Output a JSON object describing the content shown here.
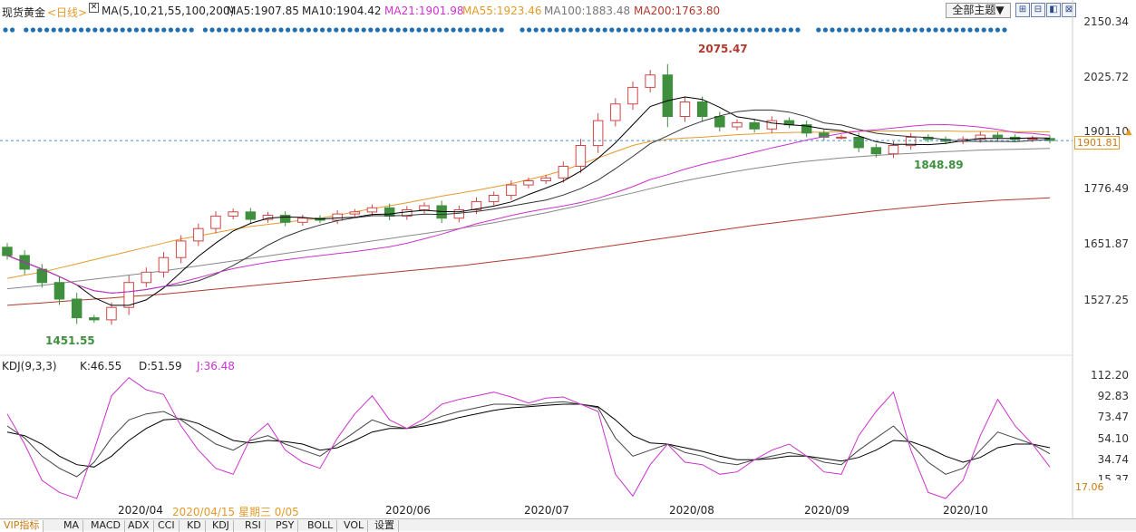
{
  "header": {
    "instrument": "现货黄金",
    "period": "<日线>",
    "ma_label": "MA(5,10,21,55,100,200)",
    "ma5": "MA5:1907.85",
    "ma10": "MA10:1904.42",
    "ma21": "MA21:1901.98",
    "ma55": "MA55:1923.46",
    "ma100": "MA100:1883.48",
    "ma200": "MA200:1763.80",
    "theme_button": "全部主题▼"
  },
  "window_buttons": [
    "⊞",
    "⊟",
    "◧",
    "⊠"
  ],
  "price_axis": [
    "2150.34",
    "2025.72",
    "1901.10",
    "1776.49",
    "1651.87",
    "1527.25"
  ],
  "price_tag": "1901.81",
  "annotations": {
    "high": "2075.47",
    "low": "1451.55",
    "local_low": "1848.89"
  },
  "kdj": {
    "label": "KDJ(9,3,3)",
    "k": "K:46.55",
    "d": "D:51.59",
    "j": "J:36.48",
    "axis": [
      "112.20",
      "92.83",
      "73.47",
      "54.10",
      "34.74",
      "15.37"
    ],
    "current_tag": "17.06"
  },
  "dates": {
    "m1": "2020/04",
    "cursor": "2020/04/15 星期三 0/05",
    "m2": "2020/06",
    "m3": "2020/07",
    "m4": "2020/08",
    "m5": "2020/09",
    "m6": "2020/10"
  },
  "tabs": [
    "VIP指标",
    "MA",
    "MACD",
    "ADX",
    "CCI",
    "KD",
    "KDJ",
    "RSI",
    "PSY",
    "BOLL",
    "VOL",
    "设置"
  ],
  "colors": {
    "ma5": "#000000",
    "ma10": "#333333",
    "ma21": "#cc33cc",
    "ma55": "#e39b2b",
    "ma100": "#888888",
    "ma200": "#b03a2e",
    "up": "#d04545",
    "down": "#3f8f3f",
    "kdj_j": "#cc33cc"
  },
  "chart_data": {
    "type": "candlestick",
    "title": "现货黄金 日线",
    "y_range": [
      1400,
      2175
    ],
    "x_labels": [
      "2020/04",
      "2020/06",
      "2020/07",
      "2020/08",
      "2020/09",
      "2020/10"
    ],
    "close": [
      1625,
      1592,
      1560,
      1520,
      1475,
      1470,
      1500,
      1560,
      1585,
      1620,
      1660,
      1690,
      1720,
      1730,
      1712,
      1722,
      1705,
      1715,
      1710,
      1725,
      1730,
      1740,
      1720,
      1735,
      1745,
      1715,
      1735,
      1755,
      1770,
      1795,
      1805,
      1812,
      1840,
      1890,
      1950,
      1990,
      2030,
      2060,
      1960,
      1995,
      1960,
      1935,
      1945,
      1930,
      1950,
      1940,
      1920,
      1910,
      1910,
      1885,
      1870,
      1890,
      1910,
      1905,
      1900,
      1905,
      1915,
      1910,
      1905,
      1907,
      1902
    ],
    "ma55": [
      1570,
      1578,
      1585,
      1595,
      1605,
      1615,
      1625,
      1635,
      1645,
      1655,
      1665,
      1672,
      1680,
      1688,
      1695,
      1700,
      1705,
      1710,
      1715,
      1722,
      1730,
      1738,
      1745,
      1752,
      1760,
      1768,
      1775,
      1782,
      1790,
      1798,
      1808,
      1818,
      1830,
      1845,
      1860,
      1875,
      1890,
      1900,
      1905,
      1908,
      1910,
      1913,
      1916,
      1918,
      1920,
      1921,
      1922,
      1922,
      1923,
      1924,
      1925,
      1925,
      1925,
      1925,
      1925,
      1924,
      1924,
      1924,
      1923,
      1923,
      1923
    ],
    "ma100": [
      1545,
      1549,
      1553,
      1558,
      1563,
      1568,
      1573,
      1578,
      1583,
      1588,
      1594,
      1600,
      1606,
      1612,
      1618,
      1624,
      1630,
      1636,
      1642,
      1648,
      1654,
      1660,
      1666,
      1672,
      1678,
      1684,
      1690,
      1697,
      1704,
      1712,
      1720,
      1728,
      1737,
      1746,
      1756,
      1766,
      1776,
      1786,
      1796,
      1805,
      1813,
      1821,
      1828,
      1835,
      1841,
      1847,
      1852,
      1856,
      1860,
      1863,
      1866,
      1869,
      1871,
      1873,
      1875,
      1877,
      1879,
      1880,
      1881,
      1882,
      1883
    ],
    "ma200": [
      1505,
      1508,
      1511,
      1514,
      1517,
      1520,
      1523,
      1526,
      1529,
      1532,
      1536,
      1540,
      1544,
      1548,
      1552,
      1556,
      1560,
      1564,
      1568,
      1572,
      1576,
      1580,
      1584,
      1588,
      1592,
      1596,
      1600,
      1605,
      1610,
      1615,
      1620,
      1626,
      1632,
      1638,
      1644,
      1650,
      1656,
      1662,
      1668,
      1674,
      1680,
      1686,
      1692,
      1698,
      1703,
      1708,
      1713,
      1718,
      1723,
      1728,
      1733,
      1737,
      1741,
      1745,
      1749,
      1752,
      1755,
      1758,
      1760,
      1762,
      1764
    ],
    "kdj_y_range": [
      10,
      115
    ],
    "kdj_k": [
      70,
      60,
      45,
      35,
      28,
      40,
      60,
      75,
      80,
      82,
      75,
      65,
      55,
      50,
      58,
      62,
      55,
      50,
      45,
      55,
      65,
      75,
      70,
      68,
      72,
      78,
      82,
      85,
      88,
      88,
      87,
      89,
      90,
      88,
      85,
      60,
      45,
      50,
      55,
      48,
      45,
      40,
      38,
      42,
      45,
      48,
      45,
      40,
      38,
      50,
      60,
      70,
      55,
      40,
      30,
      35,
      50,
      65,
      60,
      55,
      47
    ],
    "kdj_d": [
      65,
      62,
      55,
      45,
      38,
      36,
      45,
      58,
      68,
      75,
      76,
      72,
      65,
      58,
      56,
      58,
      57,
      55,
      50,
      52,
      58,
      65,
      68,
      68,
      70,
      73,
      77,
      80,
      83,
      85,
      86,
      87,
      88,
      88,
      86,
      75,
      62,
      56,
      55,
      52,
      49,
      45,
      42,
      42,
      43,
      45,
      45,
      43,
      41,
      44,
      50,
      58,
      57,
      52,
      45,
      40,
      44,
      52,
      55,
      55,
      52
    ],
    "kdj_j": [
      80,
      55,
      25,
      15,
      10,
      50,
      95,
      110,
      100,
      96,
      70,
      50,
      35,
      30,
      60,
      72,
      50,
      40,
      35,
      60,
      80,
      95,
      75,
      68,
      76,
      88,
      92,
      95,
      98,
      94,
      89,
      93,
      94,
      88,
      82,
      30,
      12,
      38,
      55,
      40,
      38,
      30,
      32,
      42,
      50,
      55,
      45,
      32,
      30,
      62,
      82,
      98,
      50,
      15,
      10,
      25,
      62,
      92,
      70,
      55,
      36
    ]
  }
}
